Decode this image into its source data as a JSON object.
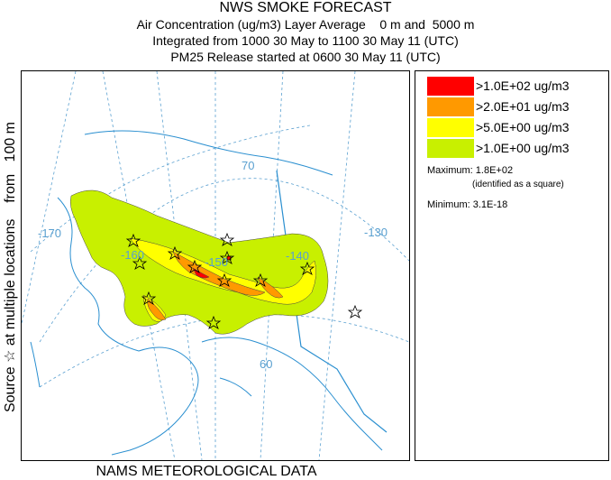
{
  "header": {
    "title": "NWS SMOKE FORECAST",
    "line2": "Air Concentration (ug/m3) Layer Average    0 m and  5000 m",
    "line3": "Integrated from 1000 30 May to 1100 30 May 11 (UTC)",
    "line4": "PM25 Release started at 0600 30 May 11 (UTC)"
  },
  "side_label": "Source ☆ at multiple locations    from   100 m",
  "footer": "NAMS METEOROLOGICAL DATA",
  "map": {
    "graticule_labels": {
      "lon_170": "-170",
      "lon_160": "-160",
      "lon_150": "-150",
      "lon_140": "-140",
      "lon_130": "-130",
      "lat_70": "70",
      "lat_60": "60"
    },
    "colors": {
      "graticule": "#5aa0d0",
      "coast": "#2a8fd0",
      "level_gt_1": "#c8f000",
      "level_gt_5": "#ffff00",
      "level_gt_20": "#ff9900",
      "level_gt_100": "#ff0000"
    }
  },
  "legend": {
    "levels": [
      {
        "label": ">1.0E+02 ug/m3",
        "color": "#ff0000"
      },
      {
        "label": ">2.0E+01 ug/m3",
        "color": "#ff9900"
      },
      {
        "label": ">5.0E+00 ug/m3",
        "color": "#ffff00"
      },
      {
        "label": ">1.0E+00 ug/m3",
        "color": "#c8f000"
      }
    ],
    "maximum_label": "Maximum: 1.8E+02",
    "maximum_note": "(identified as a square)",
    "minimum_label": "Minimum: 3.1E-18"
  }
}
